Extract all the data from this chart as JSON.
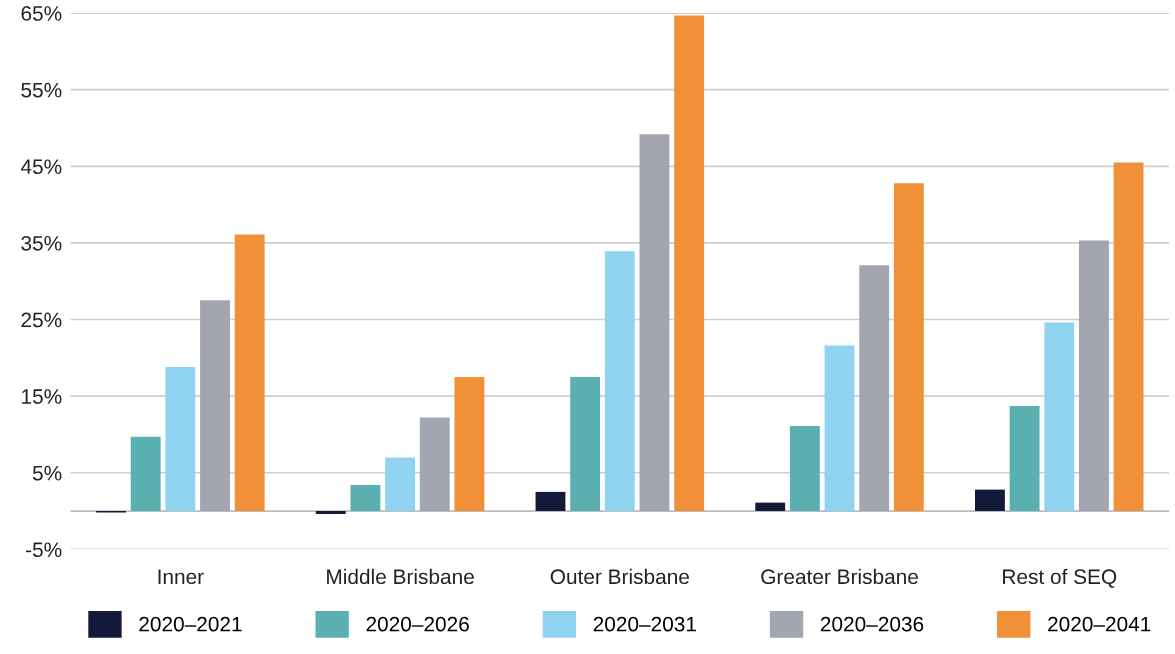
{
  "chart_data": {
    "type": "bar",
    "categories": [
      "Inner",
      "Middle Brisbane",
      "Outer Brisbane",
      "Greater Brisbane",
      "Rest of SEQ"
    ],
    "series": [
      {
        "name": "2020–2021",
        "color": "#131a3a",
        "values": [
          -0.2,
          -0.4,
          2.5,
          1.1,
          2.8
        ]
      },
      {
        "name": "2020–2026",
        "color": "#5ab0b0",
        "values": [
          9.7,
          3.4,
          17.5,
          11.1,
          13.7
        ]
      },
      {
        "name": "2020–2031",
        "color": "#8fd3f0",
        "values": [
          18.8,
          7.0,
          33.9,
          21.6,
          24.6
        ]
      },
      {
        "name": "2020–2036",
        "color": "#a3a5b0",
        "values": [
          27.5,
          12.2,
          49.2,
          32.1,
          35.3
        ]
      },
      {
        "name": "2020–2041",
        "color": "#f0913a",
        "values": [
          36.1,
          17.5,
          64.7,
          42.8,
          45.5
        ]
      }
    ],
    "ylim": [
      -5,
      65
    ],
    "yticks": [
      {
        "value": -5,
        "label": "-5%"
      },
      {
        "value": 5,
        "label": "5%"
      },
      {
        "value": 15,
        "label": "15%"
      },
      {
        "value": 25,
        "label": "25%"
      },
      {
        "value": 35,
        "label": "35%"
      },
      {
        "value": 45,
        "label": "45%"
      },
      {
        "value": 55,
        "label": "55%"
      },
      {
        "value": 65,
        "label": "65%"
      }
    ],
    "grid": "y",
    "legend": "bottom"
  }
}
